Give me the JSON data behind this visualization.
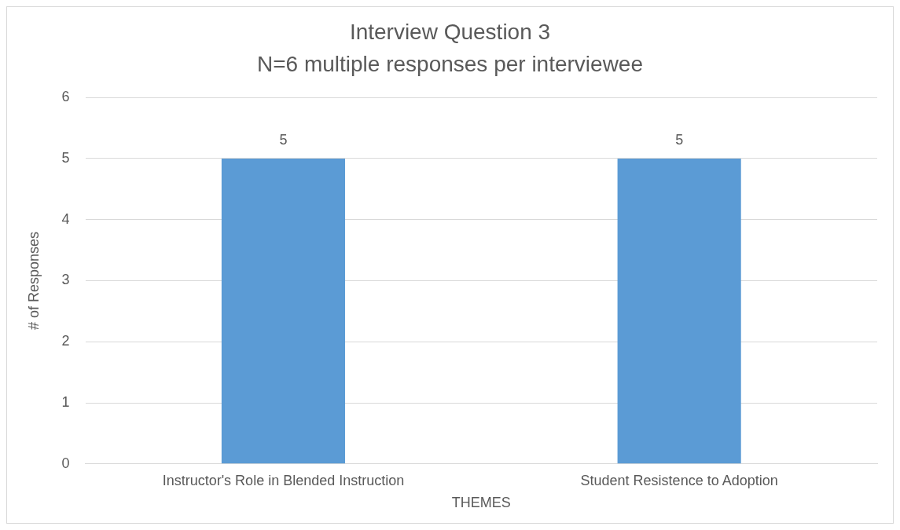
{
  "chart_data": {
    "type": "bar",
    "title": "Interview Question 3",
    "subtitle": "N=6 multiple responses per interviewee",
    "xlabel": "THEMES",
    "ylabel": "# of Responses",
    "categories": [
      "Instructor's Role in Blended Instruction",
      "Student Resistence to Adoption"
    ],
    "values": [
      5,
      5
    ],
    "color": "#5b9bd5",
    "ylim": [
      0,
      6
    ],
    "yticks": [
      0,
      1,
      2,
      3,
      4,
      5,
      6
    ],
    "grid": "y",
    "data_labels": true,
    "legend": false
  }
}
